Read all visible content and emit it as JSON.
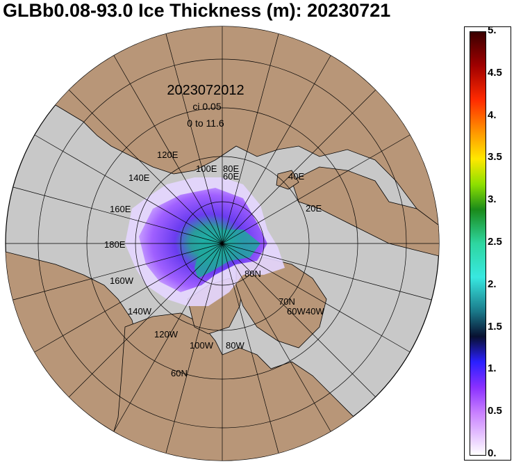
{
  "title": "GLBb0.08-93.0 Ice Thickness (m): 20230721",
  "map": {
    "annotation_time": "2023072012",
    "annotation_ci": "ci 0.05",
    "annotation_range": "0 to 11.6",
    "longitude_labels": [
      "120E",
      "100E",
      "80E",
      "140E",
      "60E",
      "160E",
      "40E",
      "20E",
      "180E",
      "160W",
      "140W",
      "120W",
      "100W",
      "80W",
      "60W",
      "40W"
    ],
    "latitude_labels": [
      "80N",
      "70N",
      "60N"
    ],
    "colors": {
      "ocean": "#c8c8c8",
      "land": "#b89678",
      "coast": "#000000",
      "grid": "#000000"
    }
  },
  "colorbar": {
    "ticks": [
      "5.",
      "4.5",
      "4.",
      "3.5",
      "3.",
      "2.5",
      "2.",
      "1.5",
      "1.",
      "0.5",
      "0."
    ],
    "min": 0,
    "max": 5
  }
}
